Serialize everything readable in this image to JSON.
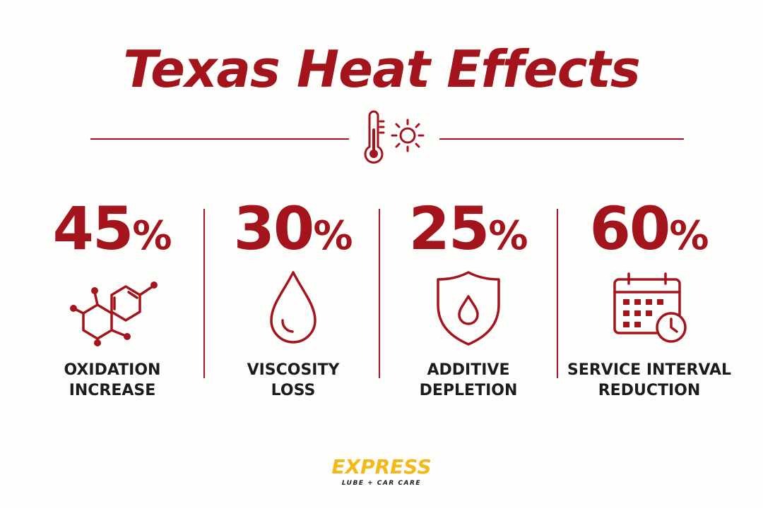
{
  "title": "Texas Heat Effects",
  "hero_icons": [
    "thermometer-icon",
    "sun-icon"
  ],
  "colors": {
    "accent": "#a3141c",
    "text": "#1c1c1c",
    "logo_yellow": "#f2b918",
    "background": "#fdfdfb"
  },
  "stats": [
    {
      "value": "45",
      "unit": "%",
      "label_line1": "OXIDATION",
      "label_line2": "INCREASE",
      "icon": "molecule-icon"
    },
    {
      "value": "30",
      "unit": "%",
      "label_line1": "VISCOSITY",
      "label_line2": "LOSS",
      "icon": "oil-drop-icon"
    },
    {
      "value": "25",
      "unit": "%",
      "label_line1": "ADDITIVE",
      "label_line2": "DEPLETION",
      "icon": "shield-drop-icon"
    },
    {
      "value": "60",
      "unit": "%",
      "label_line1": "SERVICE INTERVAL",
      "label_line2": "REDUCTION",
      "icon": "calendar-clock-icon"
    }
  ],
  "logo": {
    "wordmark": "EXPRESS",
    "tagline": "LUBE + CAR CARE"
  }
}
